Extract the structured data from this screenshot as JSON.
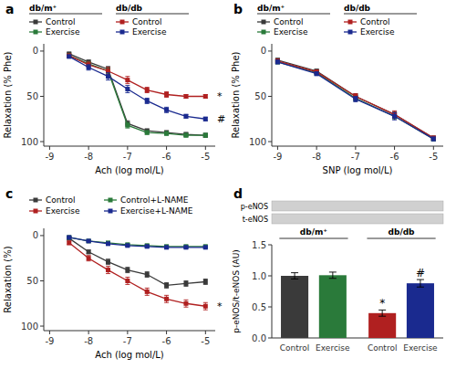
{
  "chart_data": [
    {
      "type": "line",
      "title": "a",
      "xlabel": "Ach (log mol/L)",
      "ylabel": "Relaxation (% Phe)",
      "x": [
        -8.5,
        -8,
        -7.5,
        -7,
        -6.5,
        -6,
        -5.5,
        -5
      ],
      "xlim": [
        -9.15,
        -4.75
      ],
      "xticks": [
        -9,
        -8,
        -7,
        -6,
        -5
      ],
      "ylim": [
        105,
        -8
      ],
      "yticks": [
        0,
        50,
        100
      ],
      "grid": false,
      "legend": "top",
      "series": [
        {
          "name": "Control",
          "group": "db/m⁺",
          "color": "#3a3a3a",
          "marker": "square",
          "values": [
            3,
            12,
            20,
            80,
            88,
            90,
            92,
            93
          ],
          "errors": [
            1.5,
            2,
            3,
            3,
            2,
            2,
            2,
            2
          ]
        },
        {
          "name": "Exercise",
          "group": "db/m⁺",
          "color": "#2a7a3a",
          "marker": "square",
          "values": [
            5,
            14,
            22,
            82,
            90,
            91,
            93,
            93
          ],
          "errors": [
            1.5,
            2,
            3,
            3,
            2,
            2,
            2,
            2
          ]
        },
        {
          "name": "Control",
          "group": "db/db",
          "color": "#b02020",
          "marker": "square",
          "values": [
            5,
            15,
            22,
            32,
            43,
            48,
            50,
            50
          ],
          "errors": [
            1.5,
            3,
            4,
            4,
            3,
            3,
            2,
            2
          ]
        },
        {
          "name": "Exercise",
          "group": "db/db",
          "color": "#1a2a8f",
          "marker": "square",
          "values": [
            6,
            18,
            28,
            42,
            55,
            65,
            72,
            75
          ],
          "errors": [
            1.5,
            3,
            4,
            4,
            3,
            3,
            2,
            2
          ]
        }
      ],
      "annotations": [
        {
          "text": "*",
          "y": 50
        },
        {
          "text": "#",
          "y": 75
        }
      ]
    },
    {
      "type": "line",
      "title": "b",
      "xlabel": "SNP (log mol/L)",
      "ylabel": "Relaxation (% Phe)",
      "x": [
        -9,
        -8,
        -7,
        -6,
        -5
      ],
      "xlim": [
        -9.15,
        -4.75
      ],
      "xticks": [
        -9,
        -8,
        -7,
        -6,
        -5
      ],
      "ylim": [
        105,
        -8
      ],
      "yticks": [
        0,
        50,
        100
      ],
      "grid": false,
      "legend": "top",
      "series": [
        {
          "name": "Control",
          "group": "db/m⁺",
          "color": "#3a3a3a",
          "marker": "square",
          "values": [
            10,
            22,
            50,
            70,
            96
          ],
          "errors": [
            2,
            2,
            3,
            3,
            2
          ]
        },
        {
          "name": "Exercise",
          "group": "db/m⁺",
          "color": "#2a7a3a",
          "marker": "square",
          "values": [
            12,
            24,
            52,
            72,
            97
          ],
          "errors": [
            2,
            2,
            3,
            3,
            2
          ]
        },
        {
          "name": "Control",
          "group": "db/db",
          "color": "#b02020",
          "marker": "square",
          "values": [
            11,
            23,
            50,
            70,
            96
          ],
          "errors": [
            2,
            2,
            3,
            4,
            2
          ]
        },
        {
          "name": "Exercise",
          "group": "db/db",
          "color": "#1a2a8f",
          "marker": "square",
          "values": [
            12,
            25,
            53,
            72,
            97
          ],
          "errors": [
            2,
            2,
            3,
            4,
            2
          ]
        }
      ]
    },
    {
      "type": "line",
      "title": "c",
      "xlabel": "Ach (log mol/L)",
      "ylabel": "Relaxation (%)",
      "x": [
        -8.5,
        -8,
        -7.5,
        -7,
        -6.5,
        -6,
        -5.5,
        -5
      ],
      "xlim": [
        -9.15,
        -4.75
      ],
      "xticks": [
        -9,
        -8,
        -7,
        -6,
        -5
      ],
      "ylim": [
        105,
        -8
      ],
      "yticks": [
        0,
        50,
        100
      ],
      "grid": false,
      "legend": "top",
      "series": [
        {
          "name": "Control",
          "color": "#3a3a3a",
          "marker": "square",
          "values": [
            3,
            18,
            29,
            38,
            43,
            55,
            53,
            51
          ],
          "errors": [
            1.5,
            2,
            3,
            3,
            3,
            3,
            3,
            3
          ]
        },
        {
          "name": "Exercise",
          "color": "#b02020",
          "marker": "square",
          "values": [
            8,
            25,
            38,
            50,
            62,
            70,
            75,
            78
          ],
          "errors": [
            2,
            3,
            4,
            4,
            4,
            4,
            4,
            4
          ]
        },
        {
          "name": "Control+L-NAME",
          "color": "#2a7a3a",
          "marker": "square",
          "values": [
            2,
            6,
            8,
            10,
            11,
            12,
            12,
            12
          ],
          "errors": [
            1,
            1,
            1,
            1,
            1,
            1,
            1,
            1
          ]
        },
        {
          "name": "Exercise+L-NAME",
          "color": "#1a2a8f",
          "marker": "square",
          "values": [
            2,
            6,
            9,
            11,
            12,
            13,
            13,
            13
          ],
          "errors": [
            1,
            1,
            1,
            1,
            1,
            1,
            1,
            1
          ]
        }
      ],
      "annotations": [
        {
          "text": "*",
          "y": 78
        }
      ]
    },
    {
      "type": "bar",
      "title": "d",
      "ylabel": "p-eNOS/t-eNOS (AU)",
      "categories": [
        "Control",
        "Exercise",
        "Control",
        "Exercise"
      ],
      "category_groups": [
        "db/m⁺",
        "db/m⁺",
        "db/db",
        "db/db"
      ],
      "values": [
        1.0,
        1.01,
        0.4,
        0.88
      ],
      "errors": [
        0.05,
        0.05,
        0.05,
        0.06
      ],
      "colors": [
        "#3a3a3a",
        "#2a7a3a",
        "#b02020",
        "#1a2a8f"
      ],
      "ylim": [
        0,
        1.5
      ],
      "yticks": [
        {
          "value": 0,
          "label": "0.0"
        },
        0.5,
        {
          "value": 1,
          "label": "1.0"
        },
        1.5
      ],
      "grid": false,
      "annotations": [
        {
          "text": "*",
          "index": 2
        },
        {
          "text": "#",
          "index": 3
        }
      ],
      "blot_labels": [
        "p-eNOS",
        "t-eNOS"
      ]
    }
  ]
}
